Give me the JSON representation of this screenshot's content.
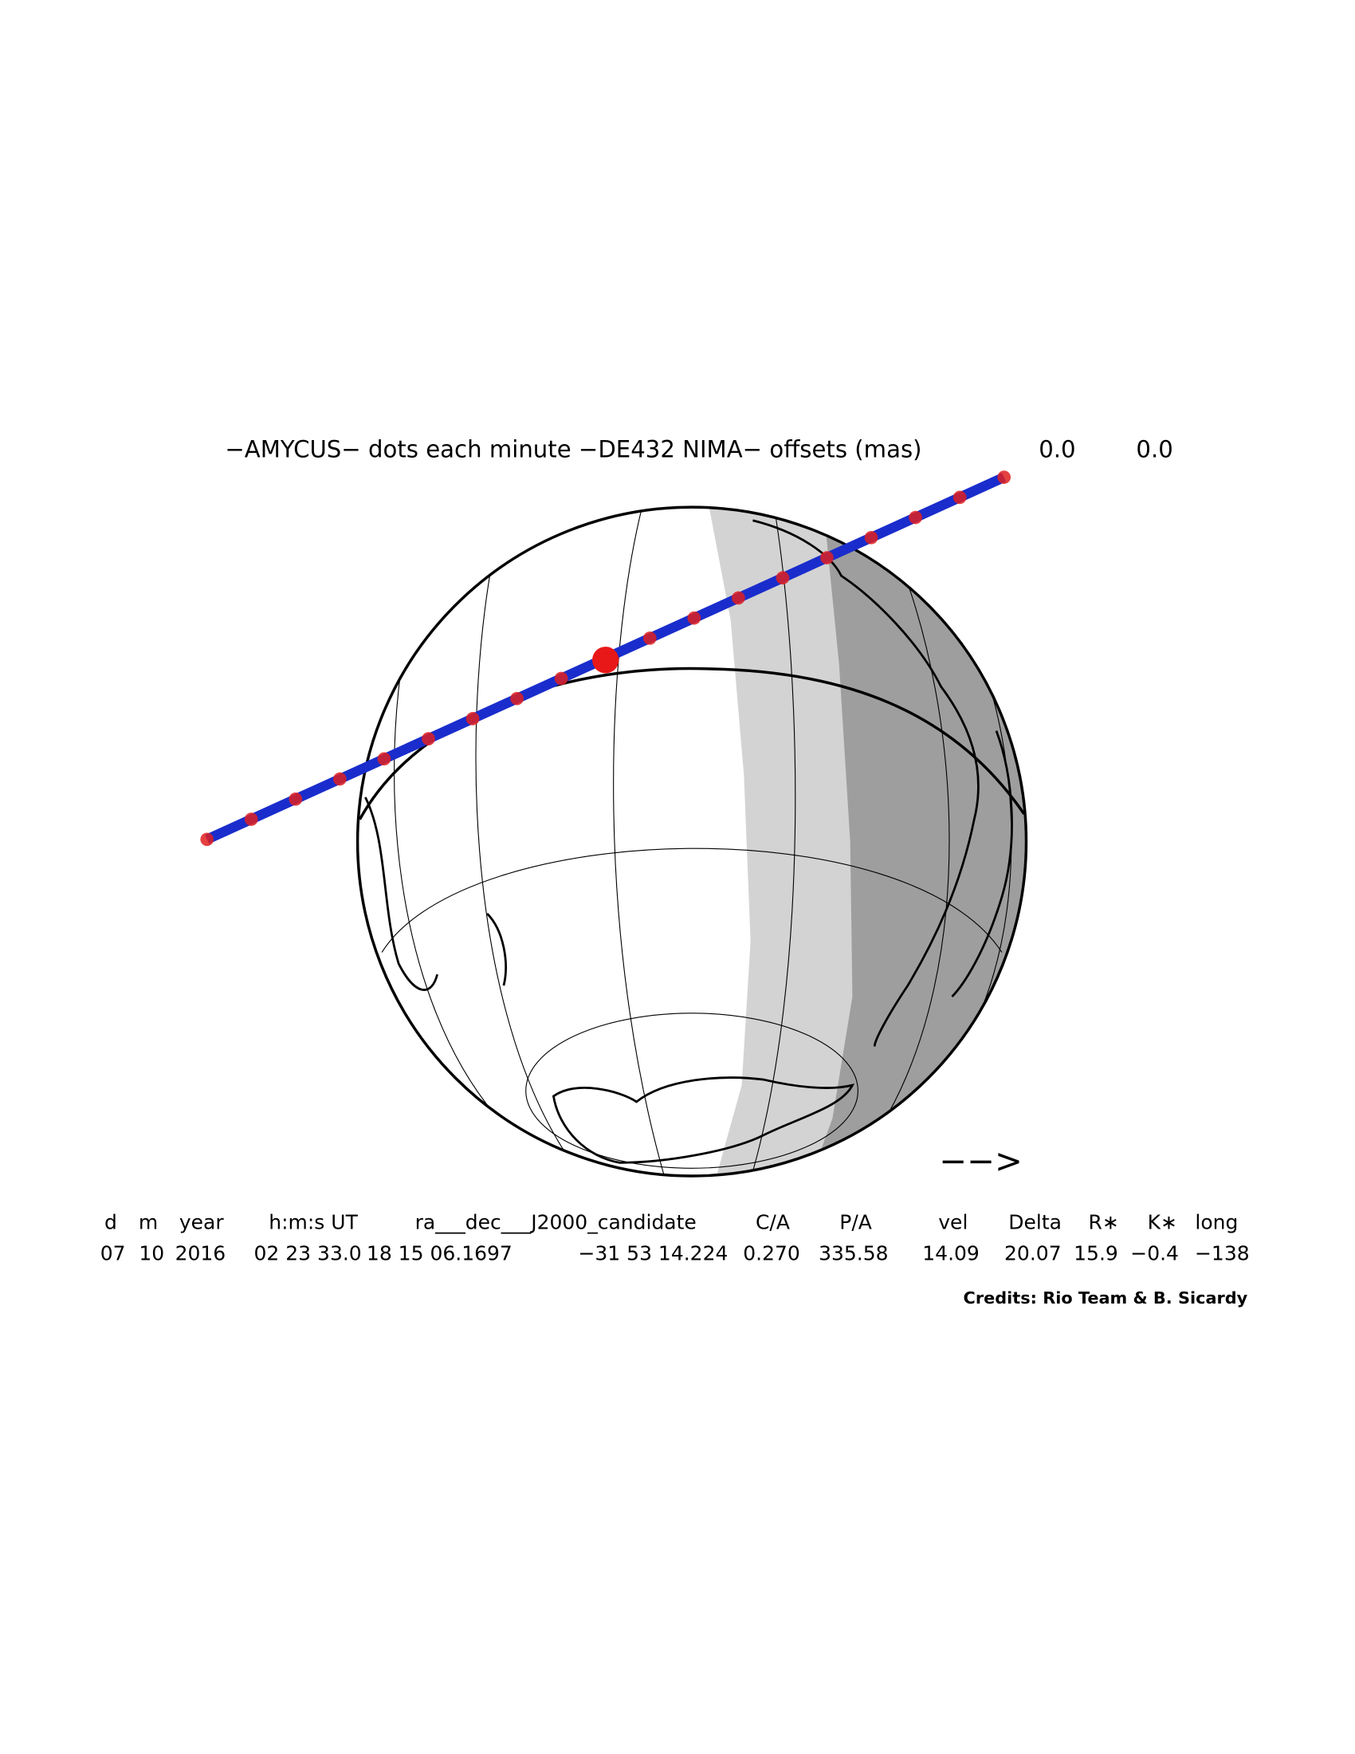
{
  "title": {
    "text": "−AMYCUS− dots each minute −DE432 NIMA− offsets (mas)",
    "offsets": [
      "0.0",
      "0.0"
    ]
  },
  "direction": "−−>",
  "table": {
    "header": [
      "d",
      "m",
      "year",
      "h:m:s UT",
      "ra___dec___J2000_candidate",
      "C/A",
      "P/A",
      "vel",
      "Delta",
      "R∗",
      "K∗",
      "long"
    ],
    "values": [
      "07",
      "10",
      "2016",
      "02 23 33.0",
      "18 15 06.1697",
      "−31 53 14.224",
      "0.270",
      "335.58",
      "14.09",
      "20.07",
      "15.9",
      "−0.4",
      "−138"
    ]
  },
  "credits": "Credits: Rio Team & B. Sicardy"
}
